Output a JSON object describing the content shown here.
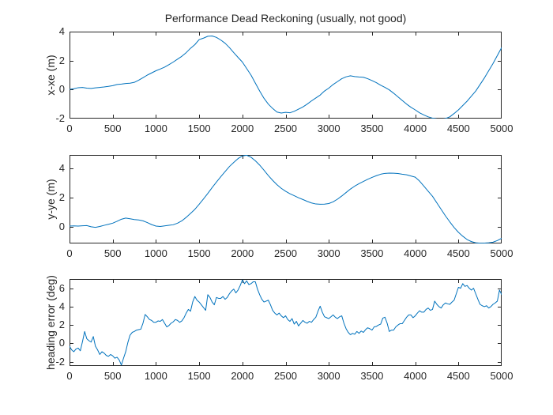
{
  "figure": {
    "title": "Performance Dead Reckoning (usually, not good)",
    "background_color": "#ffffff",
    "line_color": "#0072BD",
    "axis_color": "#262626",
    "tick_label_color": "#262626"
  },
  "chart_data": [
    {
      "type": "line",
      "ylabel": "x-xe (m)",
      "xlabel": "",
      "grid": false,
      "legend": null,
      "xlim": [
        0,
        5000
      ],
      "ylim": [
        -2,
        4
      ],
      "xticks": [
        0,
        500,
        1000,
        1500,
        2000,
        2500,
        3000,
        3500,
        4000,
        4500,
        5000
      ],
      "yticks": [
        -2,
        0,
        2,
        4
      ],
      "x_step": 50,
      "y": [
        0.02,
        0.06,
        0.13,
        0.15,
        0.1,
        0.08,
        0.12,
        0.15,
        0.18,
        0.22,
        0.27,
        0.35,
        0.38,
        0.42,
        0.44,
        0.5,
        0.65,
        0.82,
        1.0,
        1.15,
        1.3,
        1.42,
        1.55,
        1.72,
        1.9,
        2.1,
        2.3,
        2.55,
        2.85,
        3.1,
        3.45,
        3.55,
        3.68,
        3.7,
        3.6,
        3.42,
        3.2,
        2.9,
        2.55,
        2.22,
        1.9,
        1.45,
        1.0,
        0.45,
        -0.1,
        -0.6,
        -1.0,
        -1.3,
        -1.55,
        -1.62,
        -1.57,
        -1.6,
        -1.5,
        -1.35,
        -1.2,
        -1.0,
        -0.78,
        -0.58,
        -0.38,
        -0.1,
        0.1,
        0.35,
        0.55,
        0.75,
        0.88,
        0.95,
        0.9,
        0.87,
        0.85,
        0.75,
        0.62,
        0.48,
        0.3,
        0.15,
        -0.02,
        -0.25,
        -0.5,
        -0.75,
        -1.0,
        -1.22,
        -1.4,
        -1.6,
        -1.75,
        -1.88,
        -1.97,
        -2.02,
        -2.05,
        -2.0,
        -1.88,
        -1.65,
        -1.4,
        -1.1,
        -0.8,
        -0.45,
        -0.1,
        0.35,
        0.8,
        1.3,
        1.8,
        2.35,
        2.9
      ]
    },
    {
      "type": "line",
      "ylabel": "y-ye (m)",
      "xlabel": "",
      "grid": false,
      "legend": null,
      "xlim": [
        0,
        5000
      ],
      "ylim": [
        -1.15,
        4.95
      ],
      "xticks": [
        0,
        500,
        1000,
        1500,
        2000,
        2500,
        3000,
        3500,
        4000,
        4500,
        5000
      ],
      "yticks": [
        0,
        2,
        4
      ],
      "x_step": 50,
      "y": [
        0.05,
        0.06,
        0.05,
        0.07,
        0.08,
        0.0,
        -0.04,
        0.02,
        0.1,
        0.17,
        0.25,
        0.38,
        0.52,
        0.6,
        0.55,
        0.5,
        0.47,
        0.41,
        0.29,
        0.15,
        0.05,
        0.02,
        0.06,
        0.1,
        0.14,
        0.25,
        0.41,
        0.65,
        0.92,
        1.2,
        1.55,
        1.92,
        2.3,
        2.7,
        3.08,
        3.45,
        3.8,
        4.15,
        4.43,
        4.7,
        4.88,
        4.93,
        4.79,
        4.55,
        4.25,
        3.9,
        3.53,
        3.2,
        2.9,
        2.65,
        2.45,
        2.28,
        2.14,
        2.0,
        1.88,
        1.75,
        1.64,
        1.57,
        1.55,
        1.56,
        1.6,
        1.72,
        1.9,
        2.12,
        2.36,
        2.6,
        2.8,
        2.97,
        3.12,
        3.27,
        3.4,
        3.52,
        3.62,
        3.68,
        3.7,
        3.69,
        3.67,
        3.62,
        3.58,
        3.5,
        3.42,
        3.15,
        2.8,
        2.45,
        2.1,
        1.65,
        1.2,
        0.75,
        0.34,
        -0.05,
        -0.38,
        -0.65,
        -0.88,
        -1.02,
        -1.1,
        -1.13,
        -1.12,
        -1.1,
        -1.06,
        -0.95,
        -0.79
      ]
    },
    {
      "type": "line",
      "ylabel": "heading error (deg)",
      "xlabel": "",
      "grid": false,
      "legend": null,
      "xlim": [
        0,
        5000
      ],
      "ylim": [
        -2.45,
        7
      ],
      "xticks": [
        0,
        500,
        1000,
        1500,
        2000,
        2500,
        3000,
        3500,
        4000,
        4500,
        5000
      ],
      "yticks": [
        -2,
        0,
        2,
        4,
        6
      ],
      "x_step": 25,
      "y": [
        -0.3,
        -0.7,
        -0.9,
        -0.6,
        -0.5,
        -0.8,
        0.2,
        1.3,
        0.5,
        0.3,
        0.15,
        0.75,
        -0.3,
        -0.7,
        -1.2,
        -0.9,
        -1.05,
        -1.3,
        -1.4,
        -1.2,
        -1.35,
        -1.6,
        -1.5,
        -1.8,
        -2.35,
        -1.6,
        -0.9,
        0.1,
        0.9,
        1.2,
        1.3,
        1.45,
        1.5,
        1.55,
        2.2,
        3.15,
        2.9,
        2.6,
        2.5,
        2.3,
        2.3,
        2.45,
        2.4,
        2.6,
        2.2,
        1.8,
        1.95,
        2.2,
        2.35,
        2.6,
        2.5,
        2.3,
        2.45,
        2.8,
        3.3,
        3.7,
        3.5,
        4.5,
        5.1,
        4.7,
        4.5,
        4.2,
        3.9,
        3.6,
        5.3,
        5.0,
        4.5,
        4.2,
        5.0,
        4.9,
        4.9,
        5.1,
        4.8,
        5.0,
        5.4,
        5.7,
        5.9,
        5.5,
        5.8,
        6.3,
        6.9,
        6.5,
        6.8,
        6.4,
        6.5,
        6.7,
        6.7,
        5.9,
        5.3,
        4.8,
        4.5,
        4.6,
        4.7,
        4.2,
        3.6,
        3.3,
        3.1,
        3.3,
        3.0,
        2.8,
        3.0,
        2.6,
        2.4,
        2.7,
        2.1,
        2.4,
        1.9,
        2.2,
        2.5,
        2.3,
        2.2,
        2.4,
        2.3,
        2.6,
        2.85,
        3.5,
        4.05,
        3.4,
        2.9,
        2.8,
        2.7,
        2.9,
        3.1,
        2.85,
        2.7,
        2.9,
        3.0,
        2.2,
        1.6,
        1.2,
        0.95,
        1.1,
        1.0,
        1.3,
        1.1,
        1.35,
        1.2,
        1.5,
        1.7,
        1.6,
        1.45,
        1.8,
        1.85,
        2.0,
        2.1,
        2.75,
        2.85,
        2.2,
        1.3,
        1.45,
        1.45,
        1.8,
        2.0,
        2.15,
        2.15,
        2.5,
        2.85,
        3.1,
        3.1,
        2.8,
        3.0,
        3.3,
        3.55,
        3.4,
        3.4,
        3.7,
        3.85,
        3.6,
        3.7,
        4.6,
        4.25,
        4.0,
        3.85,
        4.2,
        4.4,
        4.3,
        4.25,
        4.5,
        4.7,
        5.4,
        6.1,
        6.0,
        6.5,
        6.2,
        6.3,
        6.0,
        5.8,
        6.0,
        5.4,
        4.8,
        4.25,
        4.1,
        4.0,
        4.1,
        3.85,
        4.0,
        4.25,
        4.4,
        4.6,
        5.8,
        5.3
      ]
    }
  ]
}
